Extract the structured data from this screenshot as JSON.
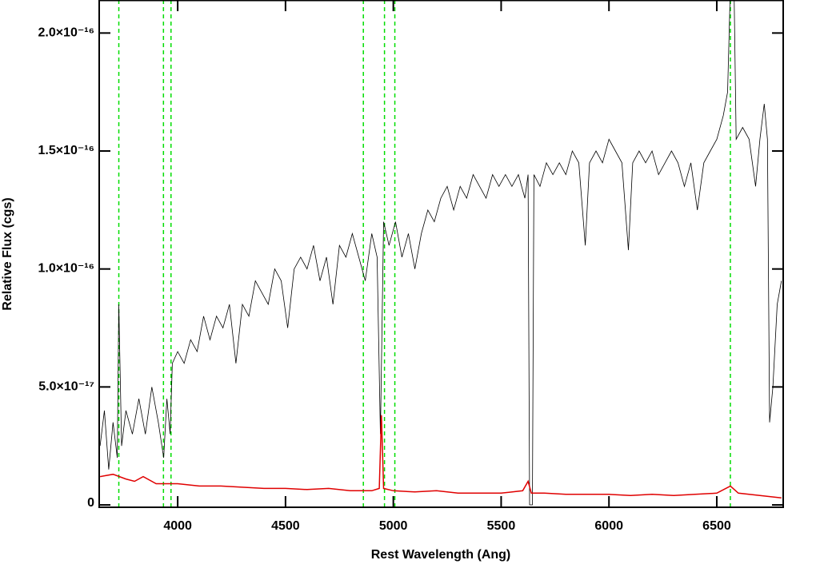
{
  "chart_data": {
    "type": "line",
    "xlabel": "Rest Wavelength (Ang)",
    "ylabel": "Relative Flux (cgs)",
    "xlim": [
      3636,
      6808
    ],
    "ylim": [
      -1e-18,
      2.14e-16
    ],
    "xticks": [
      4000,
      4500,
      5000,
      5500,
      6000,
      6500
    ],
    "yticks": [
      0,
      {
        "value": 5e-17,
        "label": "5.0×10⁻¹⁷"
      },
      {
        "value": 1e-16,
        "label": "1.0×10⁻¹⁶"
      },
      {
        "value": 1.5e-16,
        "label": "1.5×10⁻¹⁶"
      },
      {
        "value": 2e-16,
        "label": "2.0×10⁻¹⁶"
      }
    ],
    "vlines": [
      3727,
      3934,
      3969,
      4861,
      4959,
      5007,
      6563
    ],
    "vline_color": "#00dd00",
    "series": [
      {
        "color": "#000000",
        "x": [
          3640,
          3660,
          3680,
          3700,
          3720,
          3727,
          3740,
          3760,
          3790,
          3820,
          3850,
          3880,
          3910,
          3935,
          3950,
          3965,
          3975,
          4000,
          4030,
          4060,
          4090,
          4120,
          4150,
          4180,
          4210,
          4240,
          4270,
          4300,
          4330,
          4360,
          4390,
          4420,
          4450,
          4480,
          4510,
          4540,
          4570,
          4600,
          4630,
          4660,
          4690,
          4720,
          4750,
          4780,
          4810,
          4840,
          4870,
          4900,
          4925,
          4940,
          4955,
          4980,
          5010,
          5040,
          5070,
          5100,
          5130,
          5160,
          5190,
          5220,
          5250,
          5280,
          5310,
          5340,
          5370,
          5400,
          5430,
          5460,
          5490,
          5520,
          5550,
          5580,
          5610,
          5625,
          5632,
          5645,
          5652,
          5680,
          5710,
          5740,
          5770,
          5800,
          5830,
          5860,
          5890,
          5910,
          5940,
          5970,
          6000,
          6030,
          6060,
          6090,
          6110,
          6140,
          6170,
          6200,
          6230,
          6260,
          6290,
          6320,
          6350,
          6380,
          6410,
          6440,
          6470,
          6500,
          6530,
          6550,
          6563,
          6580,
          6590,
          6620,
          6650,
          6680,
          6700,
          6720,
          6735,
          6745,
          6760,
          6780,
          6800
        ],
        "values": [
          2.5e-17,
          4e-17,
          1.5e-17,
          3.5e-17,
          2e-17,
          8.5e-17,
          2.5e-17,
          4e-17,
          3e-17,
          4.5e-17,
          3e-17,
          5e-17,
          3.5e-17,
          2e-17,
          4.5e-17,
          3e-17,
          6e-17,
          6.5e-17,
          6e-17,
          7e-17,
          6.5e-17,
          8e-17,
          7e-17,
          8e-17,
          7.5e-17,
          8.5e-17,
          6e-17,
          8.5e-17,
          8e-17,
          9.5e-17,
          9e-17,
          8.5e-17,
          1e-16,
          9.5e-17,
          7.5e-17,
          1e-16,
          1.05e-16,
          1e-16,
          1.1e-16,
          9.5e-17,
          1.05e-16,
          8.5e-17,
          1.1e-16,
          1.05e-16,
          1.15e-16,
          1.05e-16,
          9.5e-17,
          1.15e-16,
          1.05e-16,
          3e-17,
          1.2e-16,
          1.1e-16,
          1.2e-16,
          1.05e-16,
          1.15e-16,
          1e-16,
          1.15e-16,
          1.25e-16,
          1.2e-16,
          1.3e-16,
          1.35e-16,
          1.25e-16,
          1.35e-16,
          1.3e-16,
          1.4e-16,
          1.35e-16,
          1.3e-16,
          1.4e-16,
          1.35e-16,
          1.4e-16,
          1.35e-16,
          1.4e-16,
          1.3e-16,
          1.4e-16,
          0,
          0,
          1.4e-16,
          1.35e-16,
          1.45e-16,
          1.4e-16,
          1.45e-16,
          1.4e-16,
          1.5e-16,
          1.45e-16,
          1.1e-16,
          1.45e-16,
          1.5e-16,
          1.45e-16,
          1.55e-16,
          1.5e-16,
          1.45e-16,
          1.08e-16,
          1.45e-16,
          1.5e-16,
          1.45e-16,
          1.5e-16,
          1.4e-16,
          1.45e-16,
          1.5e-16,
          1.45e-16,
          1.35e-16,
          1.45e-16,
          1.25e-16,
          1.45e-16,
          1.5e-16,
          1.55e-16,
          1.65e-16,
          1.75e-16,
          2.2e-16,
          2.2e-16,
          1.55e-16,
          1.6e-16,
          1.55e-16,
          1.35e-16,
          1.55e-16,
          1.7e-16,
          1.55e-16,
          3.5e-17,
          5e-17,
          8.5e-17,
          9.5e-17
        ]
      },
      {
        "color": "#e00000",
        "x": [
          3640,
          3700,
          3760,
          3800,
          3840,
          3900,
          4000,
          4100,
          4200,
          4300,
          4400,
          4500,
          4600,
          4700,
          4800,
          4900,
          4935,
          4945,
          4955,
          5000,
          5100,
          5200,
          5300,
          5400,
          5500,
          5600,
          5625,
          5640,
          5700,
          5800,
          5900,
          6000,
          6100,
          6200,
          6300,
          6400,
          6500,
          6563,
          6600,
          6700,
          6800
        ],
        "values": [
          1.2e-17,
          1.3e-17,
          1.1e-17,
          1e-17,
          1.2e-17,
          9e-18,
          9e-18,
          8e-18,
          8e-18,
          7.5e-18,
          7e-18,
          7e-18,
          6.5e-18,
          7e-18,
          6e-18,
          6e-18,
          7e-18,
          3.8e-17,
          7e-18,
          6e-18,
          5.5e-18,
          6e-18,
          5e-18,
          5e-18,
          5e-18,
          6e-18,
          1e-17,
          5e-18,
          5e-18,
          4.5e-18,
          4.5e-18,
          4.5e-18,
          4e-18,
          4.5e-18,
          4e-18,
          4.5e-18,
          5e-18,
          8e-18,
          5e-18,
          4e-18,
          3e-18
        ]
      }
    ]
  }
}
